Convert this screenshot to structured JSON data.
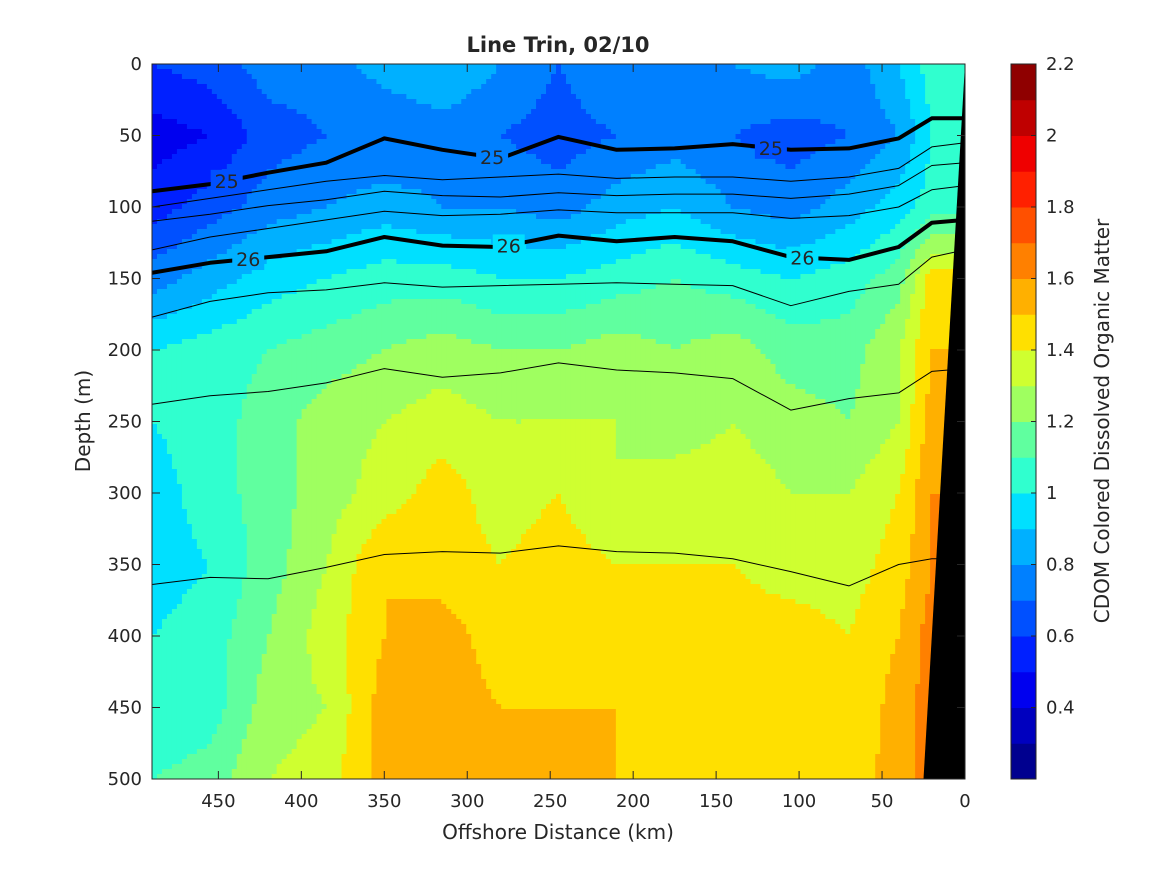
{
  "chart_data": {
    "type": "heatmap",
    "title": "Line Trin, 02/10",
    "xlabel": "Offshore Distance (km)",
    "ylabel": "Depth (m)",
    "colorbar_label": "CDOM Colored Dissolved Organic Matter",
    "xlim": [
      490,
      0
    ],
    "ylim": [
      0,
      500
    ],
    "x_reversed": true,
    "y_reversed": true,
    "clim": [
      0.2,
      2.2
    ],
    "xticks": [
      450,
      400,
      350,
      300,
      250,
      200,
      150,
      100,
      50,
      0
    ],
    "yticks": [
      0,
      50,
      100,
      150,
      200,
      250,
      300,
      350,
      400,
      450,
      500
    ],
    "colorbar_ticks": [
      0.4,
      0.6,
      0.8,
      1,
      1.2,
      1.4,
      1.6,
      1.8,
      2,
      2.2
    ],
    "colorbar_levels": [
      "#00008f",
      "#0000bf",
      "#0000ef",
      "#0020ff",
      "#0050ff",
      "#0080ff",
      "#00b0ff",
      "#00e0ff",
      "#30ffcf",
      "#60ff9f",
      "#9fff60",
      "#cfff30",
      "#ffe000",
      "#ffb000",
      "#ff8000",
      "#ff5000",
      "#ff2000",
      "#ef0000",
      "#bf0000",
      "#8f0000"
    ],
    "profile_x": [
      490,
      455,
      420,
      385,
      350,
      315,
      280,
      245,
      210,
      175,
      140,
      105,
      70,
      40,
      20,
      0
    ],
    "field_depths": [
      0,
      50,
      100,
      150,
      200,
      250,
      300,
      350,
      400,
      450,
      500
    ],
    "field_cdom": [
      [
        0.6,
        0.65,
        0.75,
        0.75,
        0.85,
        0.9,
        0.8,
        0.7,
        0.8,
        0.75,
        0.8,
        0.85,
        0.75,
        0.9,
        1.05,
        1.0
      ],
      [
        0.45,
        0.5,
        0.65,
        0.7,
        0.7,
        0.75,
        0.7,
        0.65,
        0.7,
        0.75,
        0.7,
        0.65,
        0.7,
        0.8,
        1.0,
        1.0
      ],
      [
        0.55,
        0.65,
        0.75,
        0.8,
        0.85,
        0.8,
        0.8,
        0.75,
        0.85,
        0.9,
        0.8,
        0.75,
        0.85,
        0.95,
        1.05,
        1.05
      ],
      [
        0.75,
        0.85,
        0.95,
        1.0,
        1.05,
        1.05,
        1.0,
        1.0,
        1.05,
        1.1,
        1.05,
        1.0,
        1.05,
        1.15,
        1.45,
        1.45
      ],
      [
        1.0,
        1.05,
        1.1,
        1.15,
        1.2,
        1.25,
        1.2,
        1.2,
        1.25,
        1.2,
        1.25,
        1.15,
        1.15,
        1.3,
        1.5,
        1.5
      ],
      [
        1.0,
        1.05,
        1.15,
        1.25,
        1.3,
        1.35,
        1.3,
        1.3,
        1.3,
        1.25,
        1.3,
        1.25,
        1.2,
        1.3,
        1.55,
        1.55
      ],
      [
        0.95,
        1.05,
        1.15,
        1.25,
        1.35,
        1.45,
        1.35,
        1.4,
        1.3,
        1.35,
        1.35,
        1.3,
        1.3,
        1.4,
        1.6,
        1.6
      ],
      [
        0.95,
        1.0,
        1.15,
        1.3,
        1.5,
        1.45,
        1.4,
        1.45,
        1.4,
        1.4,
        1.4,
        1.35,
        1.35,
        1.45,
        1.6,
        1.6
      ],
      [
        1.0,
        1.05,
        1.2,
        1.35,
        1.5,
        1.55,
        1.45,
        1.45,
        1.45,
        1.5,
        1.45,
        1.45,
        1.4,
        1.5,
        1.65,
        1.65
      ],
      [
        1.0,
        1.05,
        1.25,
        1.3,
        1.55,
        1.55,
        1.5,
        1.5,
        1.5,
        1.45,
        1.5,
        1.5,
        1.4,
        1.55,
        1.65,
        1.65
      ],
      [
        1.1,
        1.15,
        1.3,
        1.35,
        1.55,
        1.6,
        1.55,
        1.5,
        1.5,
        1.5,
        1.5,
        1.45,
        1.45,
        1.55,
        1.65,
        1.65
      ]
    ],
    "density_contours": [
      {
        "label": "25",
        "bold": true,
        "depths": [
          89,
          84,
          76,
          69,
          52,
          60,
          66,
          51,
          60,
          59,
          56,
          60,
          59,
          52,
          38,
          38
        ],
        "label_positions_km": [
          445,
          285,
          117
        ]
      },
      {
        "label": "",
        "bold": false,
        "depths": [
          100,
          94,
          88,
          82,
          78,
          81,
          79,
          77,
          80,
          79,
          79,
          82,
          79,
          73,
          58,
          55
        ],
        "label_positions_km": []
      },
      {
        "label": "",
        "bold": false,
        "depths": [
          110,
          105,
          99,
          95,
          89,
          92,
          93,
          90,
          92,
          91,
          91,
          94,
          91,
          85,
          71,
          69
        ],
        "label_positions_km": []
      },
      {
        "label": "",
        "bold": false,
        "depths": [
          130,
          121,
          115,
          109,
          103,
          106,
          105,
          102,
          104,
          104,
          104,
          108,
          106,
          100,
          88,
          85
        ],
        "label_positions_km": []
      },
      {
        "label": "26",
        "bold": true,
        "depths": [
          146,
          139,
          135,
          131,
          121,
          127,
          128,
          120,
          124,
          121,
          124,
          135,
          137,
          128,
          111,
          109
        ],
        "label_positions_km": [
          432,
          275,
          98
        ]
      },
      {
        "label": "",
        "bold": false,
        "depths": [
          177,
          166,
          160,
          158,
          153,
          156,
          155,
          154,
          153,
          154,
          155,
          169,
          159,
          154,
          135,
          130
        ],
        "label_positions_km": []
      },
      {
        "label": "",
        "bold": false,
        "depths": [
          238,
          232,
          229,
          223,
          213,
          219,
          216,
          209,
          214,
          216,
          220,
          242,
          234,
          230,
          215,
          213
        ],
        "label_positions_km": []
      },
      {
        "label": "",
        "bold": false,
        "depths": [
          364,
          359,
          360,
          352,
          343,
          341,
          342,
          337,
          341,
          342,
          346,
          355,
          365,
          350,
          346,
          346
        ],
        "label_positions_km": []
      }
    ],
    "seafloor": {
      "x": [
        0,
        0,
        25
      ],
      "y": [
        0,
        500,
        500
      ]
    }
  }
}
